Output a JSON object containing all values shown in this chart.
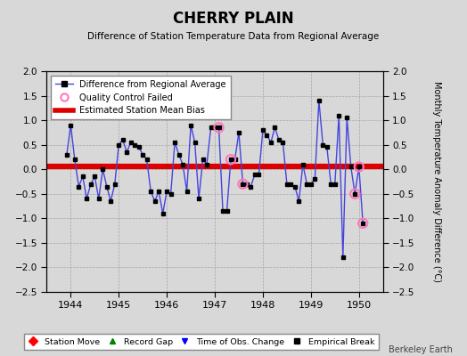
{
  "title": "CHERRY PLAIN",
  "subtitle": "Difference of Station Temperature Data from Regional Average",
  "ylabel": "Monthly Temperature Anomaly Difference (°C)",
  "background_color": "#d8d8d8",
  "plot_bg_color": "#d8d8d8",
  "bias_value": 0.05,
  "ylim": [
    -2.5,
    2.0
  ],
  "xlim": [
    1943.5,
    1950.5
  ],
  "xticks": [
    1944,
    1945,
    1946,
    1947,
    1948,
    1949,
    1950
  ],
  "yticks": [
    -2.5,
    -2.0,
    -1.5,
    -1.0,
    -0.5,
    0.0,
    0.5,
    1.0,
    1.5,
    2.0
  ],
  "line_color": "#4444dd",
  "marker_color": "#000000",
  "bias_color": "#dd0000",
  "qc_color": "#ff77bb",
  "watermark": "Berkeley Earth",
  "monthly_data": [
    [
      1943.917,
      0.3
    ],
    [
      1944.0,
      0.9
    ],
    [
      1944.083,
      0.2
    ],
    [
      1944.167,
      -0.35
    ],
    [
      1944.25,
      -0.15
    ],
    [
      1944.333,
      -0.6
    ],
    [
      1944.417,
      -0.3
    ],
    [
      1944.5,
      -0.15
    ],
    [
      1944.583,
      -0.6
    ],
    [
      1944.667,
      0.0
    ],
    [
      1944.75,
      -0.35
    ],
    [
      1944.833,
      -0.65
    ],
    [
      1944.917,
      -0.3
    ],
    [
      1945.0,
      0.5
    ],
    [
      1945.083,
      0.6
    ],
    [
      1945.167,
      0.35
    ],
    [
      1945.25,
      0.55
    ],
    [
      1945.333,
      0.5
    ],
    [
      1945.417,
      0.45
    ],
    [
      1945.5,
      0.3
    ],
    [
      1945.583,
      0.2
    ],
    [
      1945.667,
      -0.45
    ],
    [
      1945.75,
      -0.65
    ],
    [
      1945.833,
      -0.45
    ],
    [
      1945.917,
      -0.9
    ],
    [
      1946.0,
      -0.45
    ],
    [
      1946.083,
      -0.5
    ],
    [
      1946.167,
      0.55
    ],
    [
      1946.25,
      0.3
    ],
    [
      1946.333,
      0.1
    ],
    [
      1946.417,
      -0.45
    ],
    [
      1946.5,
      0.9
    ],
    [
      1946.583,
      0.55
    ],
    [
      1946.667,
      -0.6
    ],
    [
      1946.75,
      0.2
    ],
    [
      1946.833,
      0.1
    ],
    [
      1946.917,
      0.85
    ],
    [
      1947.0,
      0.85
    ],
    [
      1947.083,
      0.85
    ],
    [
      1947.167,
      -0.85
    ],
    [
      1947.25,
      -0.85
    ],
    [
      1947.333,
      0.2
    ],
    [
      1947.417,
      0.2
    ],
    [
      1947.5,
      0.75
    ],
    [
      1947.583,
      -0.3
    ],
    [
      1947.667,
      -0.3
    ],
    [
      1947.75,
      -0.35
    ],
    [
      1947.833,
      -0.1
    ],
    [
      1947.917,
      -0.1
    ],
    [
      1948.0,
      0.8
    ],
    [
      1948.083,
      0.7
    ],
    [
      1948.167,
      0.55
    ],
    [
      1948.25,
      0.85
    ],
    [
      1948.333,
      0.6
    ],
    [
      1948.417,
      0.55
    ],
    [
      1948.5,
      -0.3
    ],
    [
      1948.583,
      -0.3
    ],
    [
      1948.667,
      -0.35
    ],
    [
      1948.75,
      -0.65
    ],
    [
      1948.833,
      0.1
    ],
    [
      1948.917,
      -0.3
    ],
    [
      1949.0,
      -0.3
    ],
    [
      1949.083,
      -0.2
    ],
    [
      1949.167,
      1.4
    ],
    [
      1949.25,
      0.5
    ],
    [
      1949.333,
      0.45
    ],
    [
      1949.417,
      -0.3
    ],
    [
      1949.5,
      -0.3
    ],
    [
      1949.583,
      1.1
    ],
    [
      1949.667,
      -1.8
    ],
    [
      1949.75,
      1.05
    ],
    [
      1949.833,
      0.05
    ],
    [
      1949.917,
      -0.5
    ],
    [
      1950.0,
      0.05
    ],
    [
      1950.083,
      -1.1
    ]
  ],
  "qc_failed": [
    [
      1947.083,
      0.85
    ],
    [
      1947.333,
      0.2
    ],
    [
      1947.583,
      -0.3
    ],
    [
      1949.917,
      -0.5
    ],
    [
      1950.0,
      0.05
    ],
    [
      1950.083,
      -1.1
    ]
  ]
}
